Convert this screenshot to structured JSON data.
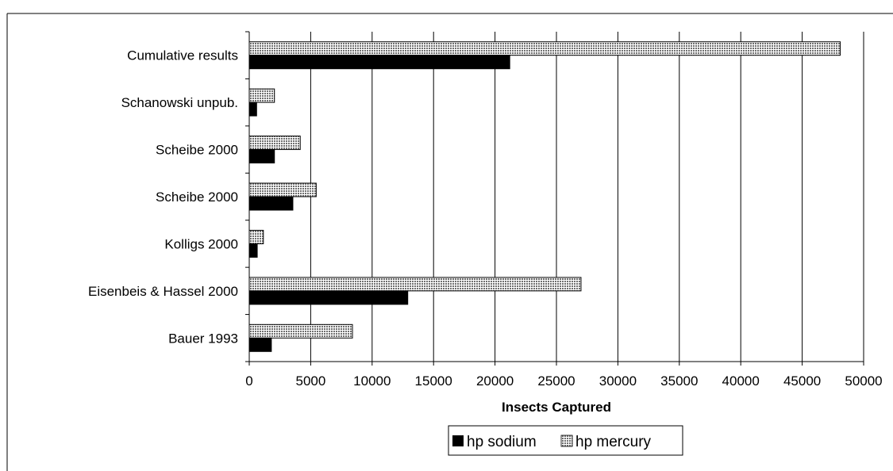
{
  "chart_data": {
    "type": "bar",
    "orientation": "horizontal",
    "categories": [
      "Bauer 1993",
      "Eisenbeis & Hassel 2000",
      "Kolligs 2000",
      "Scheibe 2000",
      "Scheibe 2000",
      "Schanowski unpub.",
      "Cumulative results"
    ],
    "series": [
      {
        "name": "hp sodium",
        "values": [
          1800,
          12900,
          650,
          3550,
          2050,
          600,
          21200
        ],
        "color": "#000000",
        "pattern": "solid"
      },
      {
        "name": "hp mercury",
        "values": [
          8400,
          27000,
          1150,
          5450,
          4150,
          2050,
          48100
        ],
        "color": "#808080",
        "pattern": "fine-grid"
      }
    ],
    "xlabel": "Insects Captured",
    "ylabel": "",
    "title": "",
    "xlim": [
      0,
      50000
    ],
    "xticks": [
      0,
      5000,
      10000,
      15000,
      20000,
      25000,
      30000,
      35000,
      40000,
      45000,
      50000
    ],
    "grid": true,
    "legend_position": "bottom"
  }
}
